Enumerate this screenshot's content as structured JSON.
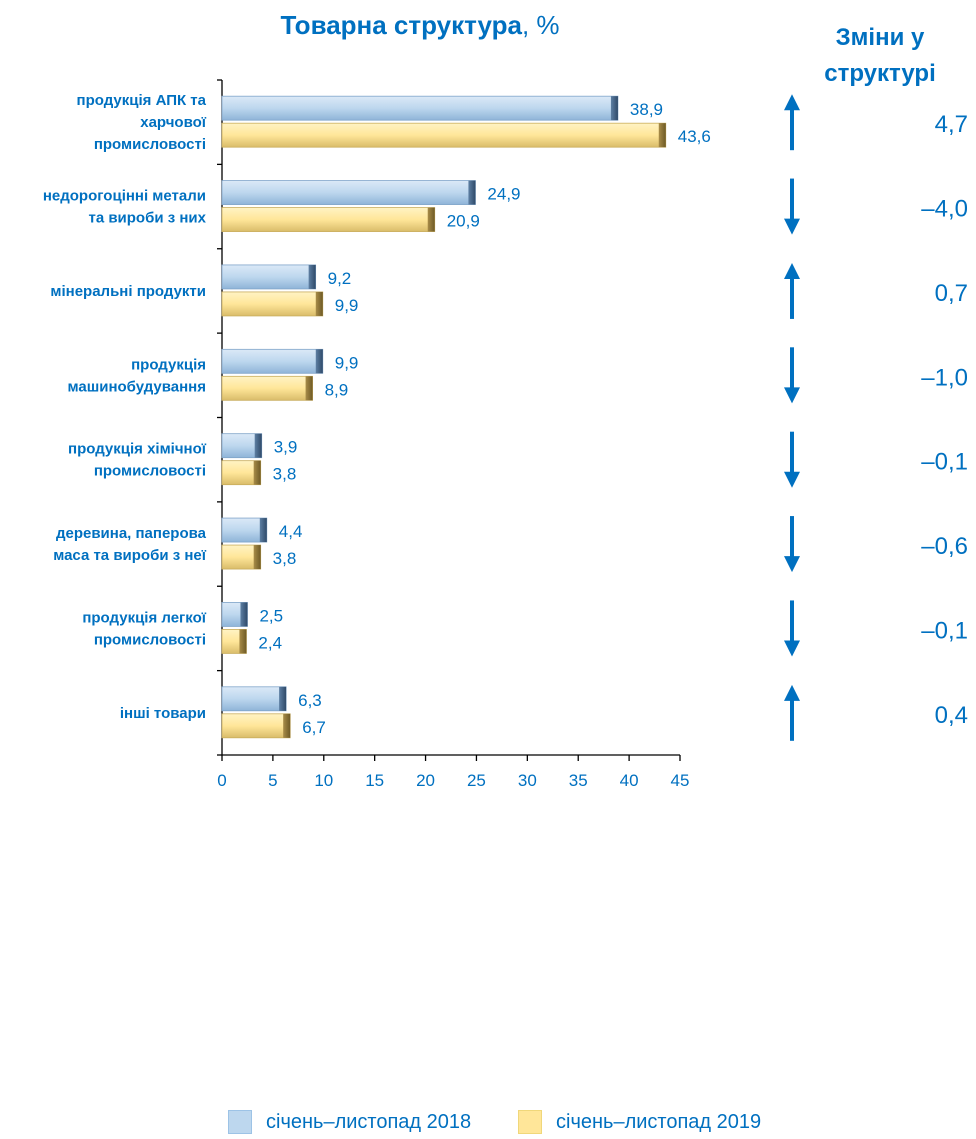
{
  "header": {
    "title_bold": "Товарна структура",
    "title_rest": ", %",
    "changes_title_line1": "Зміни у",
    "changes_title_line2": "структурі"
  },
  "legend": [
    {
      "label": "січень–листопад 2018",
      "color": "#BDD7EE"
    },
    {
      "label": "січень–листопад 2019",
      "color": "#FFE699"
    }
  ],
  "colors": {
    "accent": "#0070C0",
    "series_2018": "#BDD7EE",
    "series_2019": "#FFE699",
    "axis": "#000000"
  },
  "chart_data": {
    "type": "bar",
    "orientation": "horizontal",
    "title": "Товарна структура, %",
    "categories": [
      "продукція АПК та харчової промисловості",
      "недорогоцінні метали та вироби з них",
      "мінеральні продукти",
      "продукція машинобудування",
      "продукція хімічної промисловості",
      "деревина, паперова маса та вироби з неї",
      "продукція легкої промисловості",
      "інші товари"
    ],
    "category_lines": [
      [
        "продукція АПК та",
        "харчової",
        "промисловості"
      ],
      [
        "недорогоцінні метали",
        "та вироби з них"
      ],
      [
        "мінеральні продукти"
      ],
      [
        "продукція",
        "машинобудування"
      ],
      [
        "продукція хімічної",
        "промисловості"
      ],
      [
        "деревина, паперова",
        "маса та вироби з неї"
      ],
      [
        "продукція легкої",
        "промисловості"
      ],
      [
        "інші товари"
      ]
    ],
    "series": [
      {
        "name": "січень–листопад 2018",
        "values": [
          38.9,
          24.9,
          9.2,
          9.9,
          3.9,
          4.4,
          2.5,
          6.3
        ],
        "labels": [
          "38,9",
          "24,9",
          "9,2",
          "9,9",
          "3,9",
          "4,4",
          "2,5",
          "6,3"
        ]
      },
      {
        "name": "січень–листопад 2019",
        "values": [
          43.6,
          20.9,
          9.9,
          8.9,
          3.8,
          3.8,
          2.4,
          6.7
        ],
        "labels": [
          "43,6",
          "20,9",
          "9,9",
          "8,9",
          "3,8",
          "3,8",
          "2,4",
          "6,7"
        ]
      }
    ],
    "xlim": [
      0,
      45
    ],
    "xticks": [
      0,
      5,
      10,
      15,
      20,
      25,
      30,
      35,
      40,
      45
    ],
    "changes": {
      "title": "Зміни у структурі",
      "values": [
        4.7,
        -4.0,
        0.7,
        -1.0,
        -0.1,
        -0.6,
        -0.1,
        0.4
      ],
      "labels": [
        "4,7",
        "–4,0",
        "0,7",
        "–1,0",
        "–0,1",
        "–0,6",
        "–0,1",
        "0,4"
      ],
      "direction": [
        "up",
        "down",
        "up",
        "down",
        "down",
        "down",
        "down",
        "up"
      ]
    },
    "legend_position": "bottom",
    "grid": false
  }
}
